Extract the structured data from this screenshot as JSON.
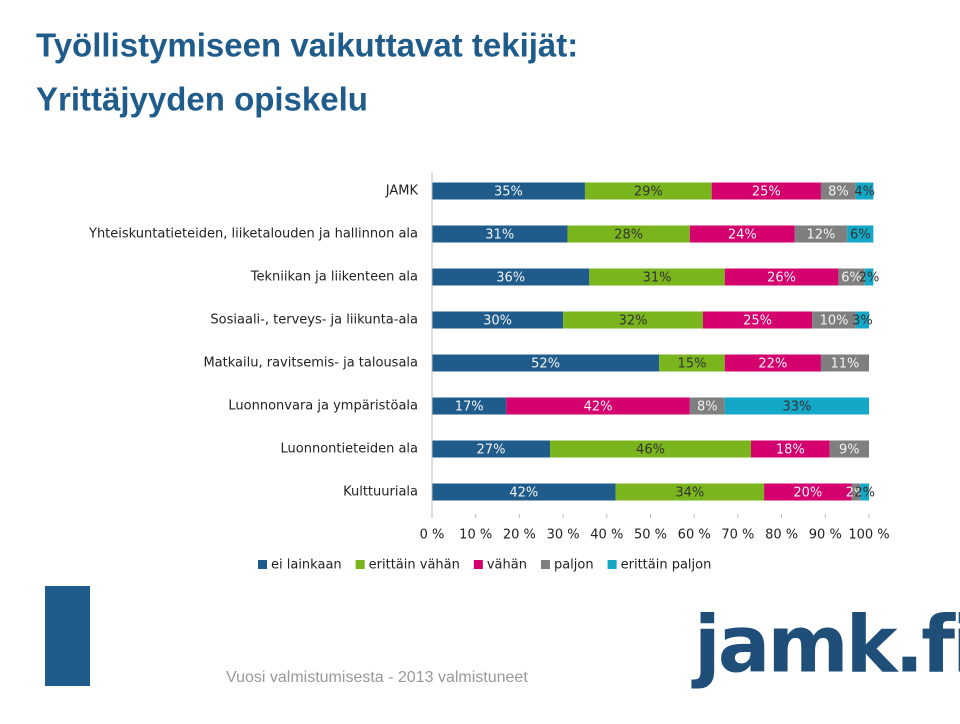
{
  "slide": {
    "title_line1": "Työllistymiseen vaikuttavat tekijät:",
    "title_line2": "Yrittäjyyden opiskelu",
    "footer": "Vuosi valmistumisesta - 2013 valmistuneet",
    "logo": "jamk.fi"
  },
  "chart_data": {
    "type": "stacked-barh",
    "categories": [
      "JAMK",
      "Yhteiskuntatieteiden, liiketalouden ja hallinnon ala",
      "Tekniikan ja liikenteen ala",
      "Sosiaali-, terveys- ja liikunta-ala",
      "Matkailu, ravitsemis- ja talousala",
      "Luonnonvara ja ympäristöala",
      "Luonnontieteiden ala",
      "Kulttuuriala"
    ],
    "series": [
      {
        "name": "ei lainkaan",
        "color": "#1f5c8b",
        "values": [
          35,
          31,
          36,
          30,
          52,
          17,
          27,
          42
        ],
        "value_labels": [
          "35%",
          "31%",
          "36%",
          "30%",
          "52%",
          "17%",
          "27%",
          "42%"
        ]
      },
      {
        "name": "erittäin vähän",
        "color": "#7ab51d",
        "values": [
          29,
          28,
          31,
          32,
          15,
          null,
          46,
          34
        ],
        "value_labels": [
          "29%",
          "28%",
          "31%",
          "32%",
          "15%",
          null,
          "46%",
          "34%"
        ]
      },
      {
        "name": "vähän",
        "color": "#d4006e",
        "values": [
          25,
          24,
          26,
          25,
          22,
          42,
          18,
          20
        ],
        "value_labels": [
          "25%",
          "24%",
          "26%",
          "25%",
          "22%",
          "42%",
          "18%",
          "20%"
        ]
      },
      {
        "name": "paljon",
        "color": "#7f7f7f",
        "values": [
          8,
          12,
          6,
          10,
          11,
          8,
          9,
          2
        ],
        "value_labels": [
          "8%",
          "12%",
          "6%",
          "10%",
          "11%",
          "8%",
          "9%",
          "2%"
        ]
      },
      {
        "name": "erittäin paljon",
        "color": "#13a7c8",
        "values": [
          4,
          6,
          2,
          3,
          null,
          33,
          null,
          2
        ],
        "value_labels": [
          "4%",
          "6%",
          "2%",
          "3%",
          null,
          "33%",
          null,
          "2%"
        ]
      }
    ],
    "xlim": [
      0,
      100
    ],
    "xticks": [
      {
        "value": 0,
        "label": "0 %"
      },
      {
        "value": 10,
        "label": "10 %"
      },
      {
        "value": 20,
        "label": "20 %"
      },
      {
        "value": 30,
        "label": "30 %"
      },
      {
        "value": 40,
        "label": "40 %"
      },
      {
        "value": 50,
        "label": "50 %"
      },
      {
        "value": 60,
        "label": "60 %"
      },
      {
        "value": 70,
        "label": "70 %"
      },
      {
        "value": 80,
        "label": "80 %"
      },
      {
        "value": 90,
        "label": "90 %"
      },
      {
        "value": 100,
        "label": "100 %"
      }
    ],
    "legend": "bottom"
  }
}
